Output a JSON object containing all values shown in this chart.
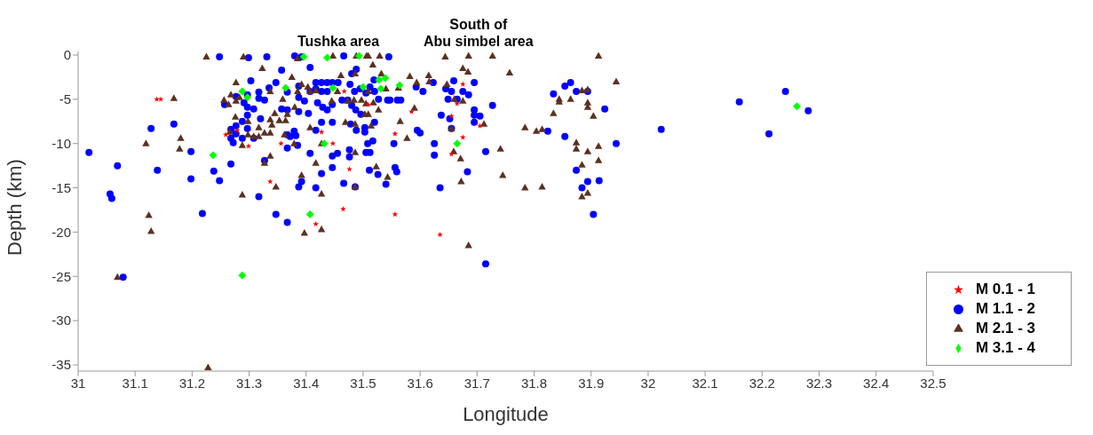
{
  "chart_data": {
    "type": "scatter",
    "xlabel": "Longitude",
    "ylabel": "Depth (km)",
    "xlim": [
      31,
      32.5
    ],
    "xticks": [
      31,
      31.1,
      31.2,
      31.3,
      31.4,
      31.5,
      31.6,
      31.7,
      31.8,
      31.9,
      32,
      32.1,
      32.2,
      32.3,
      32.4,
      32.5
    ],
    "ylim": [
      -35.7,
      0.4
    ],
    "yticks": [
      0,
      -5,
      -10,
      -15,
      -20,
      -25,
      -30,
      -35
    ],
    "legend": "bottom right",
    "annotations": [
      "Tushka area",
      "South of\nAbu simbel area"
    ],
    "series": [
      {
        "name": "M 0.1 - 1",
        "color": "#ff0000",
        "marker": "star",
        "x": [
          31.138,
          31.145,
          31.259,
          31.299,
          31.337,
          31.356,
          31.279,
          31.467,
          31.427,
          31.447,
          31.476,
          31.465,
          31.417,
          31.509,
          31.556,
          31.585,
          31.556,
          31.635,
          31.655,
          31.665,
          31.675,
          31.655,
          31.675,
          31.705
        ],
        "values": [
          -5.0,
          -5.0,
          -9.0,
          -10.3,
          -14.3,
          -10.0,
          -8.5,
          -4.1,
          -8.7,
          -10.0,
          -12.9,
          -17.4,
          -19.1,
          -5.6,
          -8.9,
          -6.4,
          -18.0,
          -20.3,
          -6.9,
          -5.5,
          -3.3,
          -11.2,
          -9.3,
          -8.0
        ]
      },
      {
        "name": "M 1.1 - 2",
        "color": "#0000ff",
        "marker": "circle",
        "x": [
          31.019,
          31.069,
          31.056,
          31.059,
          31.079,
          31.128,
          31.168,
          31.139,
          31.198,
          31.198,
          31.218,
          31.238,
          31.248,
          31.248,
          31.268,
          31.257,
          31.268,
          31.277,
          31.277,
          31.268,
          31.272,
          31.288,
          31.288,
          31.297,
          31.297,
          31.308,
          31.308,
          31.297,
          31.291,
          31.277,
          31.297,
          31.303,
          31.317,
          31.317,
          31.327,
          31.32,
          31.335,
          31.347,
          31.357,
          31.357,
          31.367,
          31.367,
          31.331,
          31.299,
          31.38,
          31.317,
          31.347,
          31.367,
          31.327,
          31.367,
          31.372,
          31.382,
          31.379,
          31.385,
          31.367,
          31.387,
          31.392,
          31.466,
          31.545,
          31.407,
          31.417,
          31.427,
          31.437,
          31.446,
          31.456,
          31.417,
          31.437,
          31.427,
          31.387,
          31.387,
          31.407,
          31.42,
          31.429,
          31.437,
          31.397,
          31.387,
          31.404,
          31.417,
          31.427,
          31.446,
          31.446,
          31.463,
          31.473,
          31.48,
          31.487,
          31.48,
          31.488,
          31.477,
          31.485,
          31.495,
          31.505,
          31.512,
          31.519,
          31.527,
          31.52,
          31.496,
          31.478,
          31.488,
          31.503,
          31.503,
          31.52,
          31.517,
          31.508,
          31.512,
          31.505,
          31.476,
          31.476,
          31.455,
          31.446,
          31.446,
          31.427,
          31.417,
          31.392,
          31.407,
          31.466,
          31.486,
          31.511,
          31.526,
          31.54,
          31.556,
          31.559,
          31.554,
          31.543,
          31.547,
          31.56,
          31.566,
          31.593,
          31.605,
          31.623,
          31.595,
          31.6,
          31.625,
          31.625,
          31.635,
          31.637,
          31.645,
          31.649,
          31.655,
          31.652,
          31.655,
          31.659,
          31.665,
          31.675,
          31.685,
          31.695,
          31.695,
          31.695,
          31.695,
          31.705,
          31.683,
          31.727,
          31.715,
          31.715,
          31.824,
          31.834,
          31.854,
          31.864,
          31.874,
          31.894,
          31.854,
          31.924,
          31.944,
          31.874,
          31.894,
          31.884,
          31.914,
          31.904,
          32.023,
          32.16,
          32.241,
          32.281,
          32.212
        ],
        "values": [
          -11.0,
          -12.5,
          -15.7,
          -16.2,
          -25.1,
          -8.3,
          -7.8,
          -13.0,
          -10.9,
          -14.0,
          -17.9,
          -13.1,
          -14.2,
          -0.2,
          -12.3,
          -5.6,
          -8.4,
          -8.0,
          -8.9,
          -9.4,
          -9.9,
          -9.4,
          -7.5,
          -6.8,
          -8.3,
          -9.4,
          -6.1,
          -5.9,
          -5.4,
          -4.7,
          -4.5,
          -2.9,
          -4.2,
          -4.9,
          -5.1,
          -7.2,
          -3.7,
          -3.1,
          -1.7,
          -6.1,
          -6.2,
          -4.2,
          -0.2,
          -0.3,
          -0.1,
          -16.0,
          -18.0,
          -18.9,
          -11.9,
          -9.0,
          -9.2,
          -9.1,
          -8.6,
          -10.2,
          -10.5,
          -14.9,
          -0.2,
          -0.1,
          -0.2,
          -1.4,
          -3.1,
          -3.1,
          -3.1,
          -3.1,
          -3.1,
          -3.8,
          -4.1,
          -4.1,
          -3.5,
          -4.8,
          -4.1,
          -5.4,
          -5.9,
          -6.2,
          -5.2,
          -6.4,
          -6.6,
          -8.5,
          -7.6,
          -7.6,
          -5.6,
          -5.1,
          -5.1,
          -5.7,
          -6.2,
          -2.1,
          -1.6,
          -3.3,
          -4.1,
          -3.8,
          -4.3,
          -3.6,
          -2.8,
          -5.0,
          -4.1,
          -6.7,
          -7.8,
          -8.5,
          -8.2,
          -8.7,
          -7.6,
          -9.7,
          -10.0,
          -11.0,
          -11.0,
          -10.7,
          -11.5,
          -11.1,
          -11.4,
          -12.7,
          -13.4,
          -15.0,
          -14.3,
          -11.1,
          -14.5,
          -14.9,
          -13.0,
          -13.5,
          -14.6,
          -12.7,
          -13.2,
          -10.0,
          -5.1,
          -5.1,
          -5.1,
          -5.1,
          -3.6,
          -4.1,
          -3.1,
          -8.5,
          -8.8,
          -10.0,
          -11.3,
          -15.0,
          -6.8,
          -3.8,
          -5.0,
          -4.1,
          -7.2,
          -8.3,
          -2.9,
          -5.0,
          -4.1,
          -4.5,
          -3.1,
          -6.2,
          -6.8,
          -7.6,
          -6.9,
          -13.2,
          -5.7,
          -10.9,
          -23.6,
          -8.6,
          -4.4,
          -3.5,
          -3.1,
          -4.1,
          -4.1,
          -9.2,
          -6.1,
          -10.0,
          -13.0,
          -14.3,
          -15.0,
          -14.2,
          -18.0,
          -8.4,
          -5.3,
          -4.1,
          -6.3,
          -8.9
        ]
      },
      {
        "name": "M 2.1 - 3",
        "color": "#5c3020",
        "marker": "triangle",
        "x": [
          31.225,
          31.29,
          31.323,
          31.375,
          31.277,
          31.168,
          31.256,
          31.264,
          31.268,
          31.277,
          31.283,
          31.337,
          31.359,
          31.345,
          31.367,
          31.353,
          31.364,
          31.337,
          31.34,
          31.317,
          31.327,
          31.337,
          31.317,
          31.308,
          31.298,
          31.298,
          31.276,
          31.266,
          31.288,
          31.119,
          31.18,
          31.178,
          31.337,
          31.327,
          31.347,
          31.288,
          31.124,
          31.128,
          31.069,
          31.228,
          31.38,
          31.385,
          31.379,
          31.362,
          31.385,
          31.447,
          31.488,
          31.506,
          31.509,
          31.529,
          31.517,
          31.644,
          31.685,
          31.675,
          31.684,
          31.461,
          31.486,
          31.532,
          31.582,
          31.615,
          31.616,
          31.594,
          31.647,
          31.392,
          31.403,
          31.407,
          31.417,
          31.455,
          31.473,
          31.484,
          31.497,
          31.505,
          31.518,
          31.509,
          31.54,
          31.562,
          31.445,
          31.527,
          31.503,
          31.509,
          31.469,
          31.486,
          31.514,
          31.565,
          31.577,
          31.59,
          31.66,
          31.675,
          31.655,
          31.659,
          31.671,
          31.672,
          31.685,
          31.486,
          31.486,
          31.523,
          31.543,
          31.392,
          31.417,
          31.427,
          31.427,
          31.397,
          31.407,
          31.427,
          31.727,
          31.757,
          31.913,
          31.944,
          31.712,
          31.741,
          31.745,
          31.784,
          31.784,
          31.804,
          31.814,
          31.814,
          31.834,
          31.844,
          31.844,
          31.864,
          31.884,
          31.894,
          31.894,
          31.894,
          31.904,
          31.874,
          31.874,
          31.894,
          31.913,
          31.913,
          31.884,
          31.884,
          31.894
        ],
        "values": [
          -0.2,
          -0.2,
          -1.5,
          -2.5,
          -3.1,
          -4.9,
          -5.1,
          -5.6,
          -4.5,
          -5.2,
          -4.8,
          -4.1,
          -5.0,
          -6.6,
          -6.7,
          -7.4,
          -7.4,
          -7.3,
          -7.9,
          -8.2,
          -8.8,
          -8.8,
          -9.2,
          -9.2,
          -9.0,
          -7.5,
          -7.0,
          -8.7,
          -10.2,
          -10.0,
          -9.4,
          -10.6,
          -11.4,
          -12.2,
          -14.9,
          -15.8,
          -18.1,
          -19.9,
          -25.1,
          -35.3,
          -5.9,
          -4.1,
          -10.0,
          -9.0,
          -0.4,
          -0.1,
          -0.1,
          -0.1,
          -0.1,
          -0.1,
          -1.1,
          -0.2,
          -0.1,
          -1.5,
          -1.9,
          -2.3,
          -2.1,
          -2.1,
          -2.4,
          -2.3,
          -3.0,
          -3.1,
          -3.3,
          -3.3,
          -3.6,
          -4.1,
          -4.0,
          -4.1,
          -5.2,
          -5.1,
          -5.1,
          -5.5,
          -5.4,
          -4.1,
          -3.8,
          -3.7,
          -5.2,
          -6.2,
          -6.7,
          -6.7,
          -7.6,
          -7.8,
          -8.0,
          -7.5,
          -9.4,
          -6.0,
          -5.0,
          -5.2,
          -8.3,
          -10.9,
          -11.7,
          -14.3,
          -21.5,
          -11.0,
          -14.9,
          -12.6,
          -13.8,
          -13.6,
          -12.2,
          -15.7,
          -19.7,
          -20.1,
          -8.2,
          -10.0,
          -0.1,
          -2.0,
          -0.1,
          -3.0,
          -7.8,
          -10.6,
          -13.6,
          -8.2,
          -15.0,
          -8.6,
          -8.4,
          -14.9,
          -6.6,
          -5.0,
          -5.3,
          -5.0,
          -4.0,
          -3.9,
          -5.4,
          -5.9,
          -6.9,
          -9.9,
          -10.6,
          -10.9,
          -10.3,
          -11.9,
          -12.4,
          -16.0,
          -15.6
        ]
      },
      {
        "name": "M 3.1 - 4",
        "color": "#00ff00",
        "marker": "diamond",
        "x": [
          31.396,
          31.437,
          31.493,
          31.447,
          31.5,
          31.528,
          31.539,
          31.531,
          31.564,
          31.432,
          31.665,
          31.407,
          31.288,
          31.297,
          31.364,
          31.237,
          31.288,
          32.261
        ],
        "values": [
          -0.2,
          -0.3,
          -0.1,
          -3.7,
          -3.6,
          -2.8,
          -2.6,
          -3.8,
          -3.4,
          -10.0,
          -10.0,
          -18.0,
          -4.1,
          -4.8,
          -3.7,
          -11.3,
          -24.9,
          -5.8
        ]
      }
    ]
  }
}
